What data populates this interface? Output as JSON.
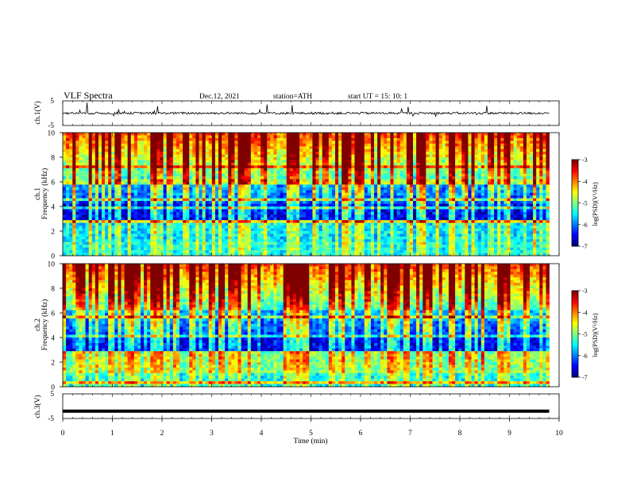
{
  "header": {
    "title": "VLF  Spectra",
    "date": "Dec.12, 2021",
    "station": "station=ATH",
    "start": "start  UT  =    15: 10: 1"
  },
  "chart_data": [
    {
      "type": "line",
      "id": "ch1-waveform",
      "ylabel": "ch.1(V)",
      "ylim": [
        -5,
        5
      ],
      "yticks": [
        "5",
        "-5"
      ],
      "xlim": [
        0,
        10
      ],
      "baseline": 0,
      "series": [
        {
          "x": [
            0,
            9.8
          ],
          "y": [
            0,
            0
          ]
        }
      ]
    },
    {
      "type": "heatmap",
      "id": "ch1-spectrogram",
      "ylabel": "ch.1\nFrequency  (kHz)",
      "ylim": [
        0,
        10
      ],
      "yticks": [
        "0",
        "2",
        "4",
        "6",
        "8",
        "10"
      ],
      "xlim": [
        0,
        10
      ],
      "data_xmax": 9.8,
      "colorbar": {
        "label": "log(PSD)(V²/Hz)",
        "range": [
          -7,
          -3
        ],
        "ticks": [
          "-3",
          "-4",
          "-5",
          "-6",
          "-7"
        ]
      }
    },
    {
      "type": "heatmap",
      "id": "ch2-spectrogram",
      "ylabel": "ch.2\nFrequency  (kHz)",
      "ylim": [
        0,
        10
      ],
      "yticks": [
        "0",
        "2",
        "4",
        "6",
        "8",
        "10"
      ],
      "xlim": [
        0,
        10
      ],
      "data_xmax": 9.8,
      "colorbar": {
        "label": "log(PSD)(V²/Hz)",
        "range": [
          -7,
          -3
        ],
        "ticks": [
          "-3",
          "-4",
          "-5",
          "-6",
          "-7"
        ]
      }
    },
    {
      "type": "line",
      "id": "ch3-waveform",
      "ylabel": "ch.3(V)",
      "ylim": [
        -5,
        5
      ],
      "yticks": [
        "5",
        "-5"
      ],
      "xlim": [
        0,
        10
      ],
      "xlabel": "Time  (min)",
      "xticks": [
        "0",
        "1",
        "2",
        "3",
        "4",
        "5",
        "6",
        "7",
        "8",
        "9",
        "10"
      ],
      "series": [
        {
          "x": [
            0,
            9.8
          ],
          "y": [
            -2,
            -2
          ]
        }
      ]
    }
  ]
}
